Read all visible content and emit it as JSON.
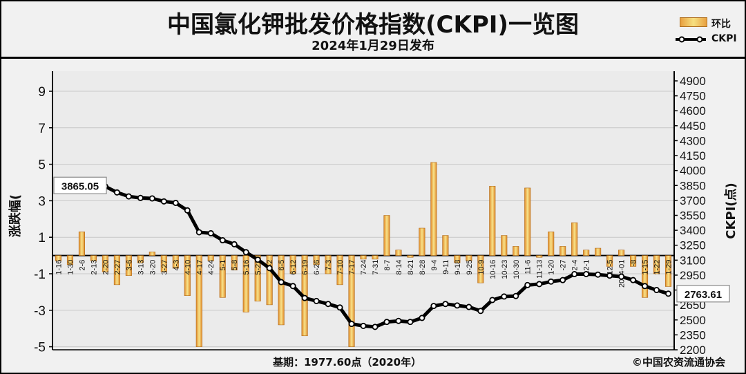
{
  "title": "中国氯化钾批发价格指数(CKPI)一览图",
  "subtitle": "2024年1月29日发布",
  "legend": {
    "bar_label": "环比",
    "line_label": "CKPI"
  },
  "footer": {
    "base_note": "基期：1977.60点（2020年）",
    "copyright": "©中国农资流通协会"
  },
  "colors": {
    "bar_light": "#f8e38a",
    "bar_dark": "#e08a2a",
    "line": "#000000",
    "grid": "#c8c8c8",
    "plot_bg": "#ebebeb"
  },
  "chart_data": {
    "type": "bar+line",
    "categories": [
      "1-16",
      "1-30",
      "2-6",
      "2-13",
      "2-20",
      "2-27",
      "3-6",
      "3-13",
      "3-20",
      "3-27",
      "4-3",
      "4-10",
      "4-17",
      "4-24",
      "5-1",
      "5-8",
      "5-16",
      "5-22",
      "5-29",
      "6-5",
      "6-12",
      "6-19",
      "6-26",
      "7-3",
      "7-10",
      "7-17",
      "7-24",
      "7-31",
      "8-7",
      "8-14",
      "8-21",
      "8-28",
      "9-4",
      "9-11",
      "9-18",
      "9-25",
      "10-9",
      "10-16",
      "10-23",
      "10-30",
      "11-6",
      "11-13",
      "11-20",
      "11-27",
      "12-4",
      "12-11",
      "12-18",
      "12-25",
      "2024-1-1",
      "1-8",
      "1-15",
      "1-22",
      "1-29"
    ],
    "category_labels": [
      "1-16",
      "1-30",
      "2-6",
      "2-13",
      "2-20",
      "2-27",
      "3-6",
      "3-13",
      "3-20",
      "3-27",
      "4-3",
      "4-10",
      "4-17",
      "4-24",
      "5-1",
      "5-8",
      "5-16",
      "5-22",
      "5-2",
      "6-5",
      "6-12",
      "6-19",
      "6-26",
      "7-3",
      "7-10",
      "7-17",
      "7-24",
      "7-31",
      "8-7",
      "8-14",
      "8-21",
      "8-28",
      "9-4",
      "9-11",
      "9-18",
      "9-25",
      "10-9",
      "10-16",
      "10-23",
      "10-30",
      "11-6",
      "11-13",
      "1-20",
      "-27",
      "2-4",
      "12-1",
      "",
      "12-5",
      "2024-01",
      "-8",
      "1-15",
      "1-22",
      "1-29"
    ],
    "series": [
      {
        "name": "环比",
        "type": "bar",
        "axis": "left",
        "values": [
          -0.3,
          -0.5,
          1.3,
          -0.3,
          -0.9,
          -1.6,
          -1.1,
          -0.4,
          0.2,
          -0.9,
          -0.7,
          -2.2,
          -5.0,
          -0.3,
          -2.3,
          -0.8,
          -3.1,
          -2.5,
          -2.7,
          -3.8,
          -1.0,
          -4.4,
          -0.5,
          -1.0,
          -1.6,
          -5.0,
          -0.2,
          -0.2,
          2.2,
          0.3,
          -0.1,
          1.5,
          5.1,
          1.1,
          -0.4,
          -0.3,
          -1.5,
          3.8,
          1.1,
          0.5,
          3.7,
          -0.1,
          1.3,
          0.5,
          1.8,
          0.3,
          0.4,
          -0.6,
          0.3,
          -0.6,
          -2.3,
          -1.0,
          -1.7
        ]
      },
      {
        "name": "CKPI",
        "type": "line",
        "axis": "right",
        "values": [
          3850,
          3860,
          3890,
          3880,
          3840,
          3780,
          3740,
          3725,
          3720,
          3690,
          3675,
          3600,
          3380,
          3370,
          3300,
          3260,
          3180,
          3105,
          3020,
          2880,
          2840,
          2720,
          2690,
          2660,
          2625,
          2460,
          2440,
          2430,
          2480,
          2490,
          2480,
          2520,
          2640,
          2660,
          2645,
          2630,
          2590,
          2700,
          2735,
          2740,
          2850,
          2860,
          2885,
          2900,
          2960,
          2960,
          2955,
          2945,
          2935,
          2900,
          2840,
          2800,
          2763.61
        ]
      }
    ],
    "y_left": {
      "label": "涨跌幅(%)",
      "label_visible": "涨跌幅(",
      "min": -5,
      "max": 10,
      "ticks": [
        9,
        7,
        5,
        3,
        1,
        -1,
        -3,
        -5
      ]
    },
    "y_right": {
      "label": "CKPI(点)",
      "min": 2200,
      "max": 4950,
      "ticks": [
        4900,
        4750,
        4600,
        4450,
        4300,
        4150,
        4000,
        3850,
        3700,
        3550,
        3400,
        3250,
        3100,
        2950,
        2800,
        2650,
        2500,
        2350,
        2200
      ]
    },
    "callouts": [
      {
        "text": "3865.05",
        "index": 0
      },
      {
        "text": "2763.61",
        "index": 52
      }
    ],
    "grid": true
  }
}
